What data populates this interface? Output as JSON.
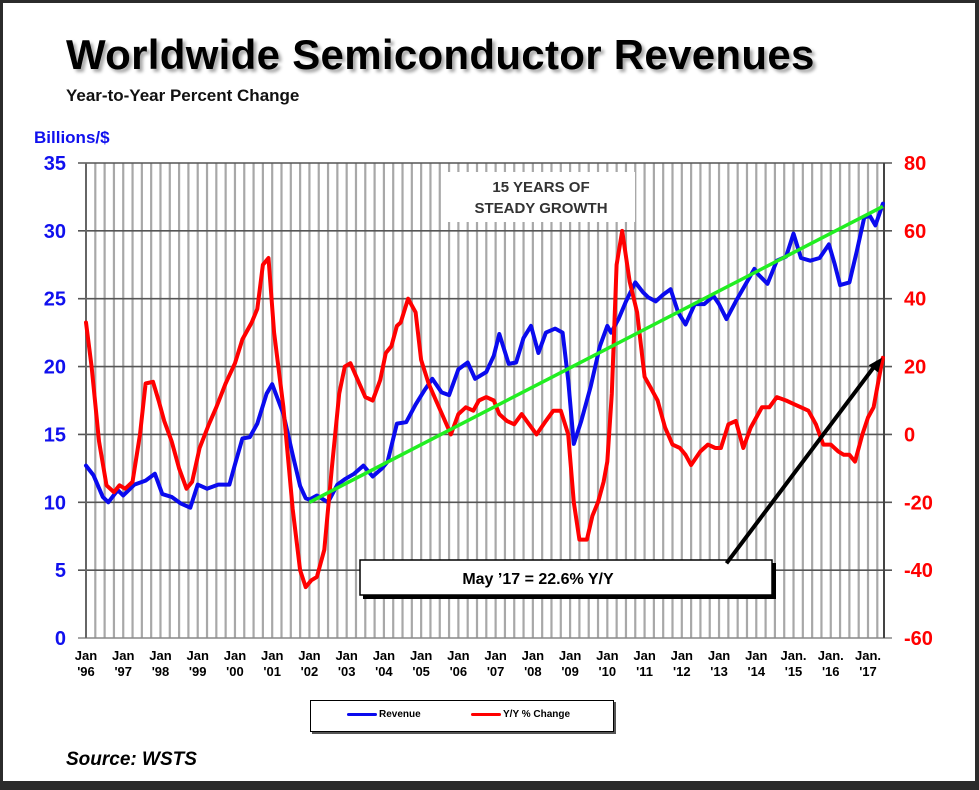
{
  "header": {
    "title": "Worldwide Semiconductor Revenues",
    "subtitle": "Year-to-Year Percent Change",
    "left_axis_label": "Billions/$"
  },
  "footer": {
    "source": "Source: WSTS"
  },
  "colors": {
    "revenue": "#0a0aee",
    "yoy": "#ff0000",
    "trend": "#22ee22",
    "left_axis_text": "#1010ee",
    "right_axis_text": "#ff0000",
    "grid_major": "#555555",
    "grid_minor": "#a8a8a8"
  },
  "chart_data": {
    "type": "line",
    "title": "Worldwide Semiconductor Revenues",
    "subtitle": "Year-to-Year Percent Change",
    "xlabel": "",
    "ylabel": "Billions/$",
    "ylabel_right": "Y/Y % Change",
    "ylim": [
      0,
      35
    ],
    "ylim_right": [
      -60,
      80
    ],
    "xlim": [
      1996,
      2017.4
    ],
    "y_ticks": [
      "0",
      "5",
      "10",
      "15",
      "20",
      "25",
      "30",
      "35"
    ],
    "y_ticks_right": [
      "-60",
      "-40",
      "-20",
      "0",
      "20",
      "40",
      "60",
      "80"
    ],
    "x_ticks": [
      {
        "l1": "Jan",
        "l2": "'96"
      },
      {
        "l1": "Jan",
        "l2": "'97"
      },
      {
        "l1": "Jan",
        "l2": "'98"
      },
      {
        "l1": "Jan",
        "l2": "'99"
      },
      {
        "l1": "Jan",
        "l2": "'00"
      },
      {
        "l1": "Jan",
        "l2": "'01"
      },
      {
        "l1": "Jan",
        "l2": "'02"
      },
      {
        "l1": "Jan",
        "l2": "'03"
      },
      {
        "l1": "Jan",
        "l2": "'04"
      },
      {
        "l1": "Jan",
        "l2": "'05"
      },
      {
        "l1": "Jan",
        "l2": "'06"
      },
      {
        "l1": "Jan",
        "l2": "'07"
      },
      {
        "l1": "Jan",
        "l2": "'08"
      },
      {
        "l1": "Jan",
        "l2": "'09"
      },
      {
        "l1": "Jan",
        "l2": "'10"
      },
      {
        "l1": "Jan",
        "l2": "'11"
      },
      {
        "l1": "Jan",
        "l2": "'12"
      },
      {
        "l1": "Jan",
        "l2": "'13"
      },
      {
        "l1": "Jan",
        "l2": "'14"
      },
      {
        "l1": "Jan.",
        "l2": "'15"
      },
      {
        "l1": "Jan.",
        "l2": "'16"
      },
      {
        "l1": "Jan.",
        "l2": "'17"
      }
    ],
    "grid": true,
    "legend_position": "bottom-center",
    "series": [
      {
        "name": "Revenue",
        "axis": "left",
        "x": [
          1996.0,
          1996.2,
          1996.45,
          1996.6,
          1996.85,
          1997.0,
          1997.3,
          1997.6,
          1997.85,
          1998.05,
          1998.3,
          1998.55,
          1998.8,
          1999.0,
          1999.25,
          1999.55,
          1999.85,
          2000.0,
          2000.2,
          2000.4,
          2000.6,
          2000.85,
          2001.0,
          2001.3,
          2001.55,
          2001.75,
          2001.9,
          2002.0,
          2002.2,
          2002.5,
          2002.75,
          2002.95,
          2003.2,
          2003.45,
          2003.7,
          2003.95,
          2004.1,
          2004.35,
          2004.6,
          2004.85,
          2005.1,
          2005.3,
          2005.55,
          2005.75,
          2006.0,
          2006.25,
          2006.45,
          2006.75,
          2006.95,
          2007.1,
          2007.35,
          2007.55,
          2007.75,
          2007.95,
          2008.15,
          2008.35,
          2008.6,
          2008.8,
          2008.95,
          2009.1,
          2009.3,
          2009.55,
          2009.8,
          2010.0,
          2010.1,
          2010.3,
          2010.5,
          2010.75,
          2010.95,
          2011.1,
          2011.3,
          2011.5,
          2011.7,
          2011.9,
          2012.1,
          2012.35,
          2012.6,
          2012.85,
          2013.0,
          2013.2,
          2013.45,
          2013.7,
          2013.95,
          2014.05,
          2014.3,
          2014.55,
          2014.8,
          2015.0,
          2015.2,
          2015.45,
          2015.7,
          2015.95,
          2016.1,
          2016.25,
          2016.5,
          2016.7,
          2016.9,
          2017.05,
          2017.2,
          2017.4
        ],
        "values": [
          12.7,
          12.0,
          10.4,
          10.0,
          10.9,
          10.5,
          11.3,
          11.6,
          12.1,
          10.6,
          10.4,
          9.9,
          9.6,
          11.3,
          11.0,
          11.3,
          11.3,
          12.8,
          14.7,
          14.8,
          15.8,
          18.0,
          18.7,
          16.5,
          13.5,
          11.2,
          10.3,
          10.2,
          10.5,
          10.0,
          11.3,
          11.7,
          12.1,
          12.7,
          11.9,
          12.5,
          13.0,
          15.8,
          15.9,
          17.2,
          18.3,
          19.1,
          18.1,
          17.9,
          19.8,
          20.3,
          19.1,
          19.6,
          20.8,
          22.4,
          20.2,
          20.3,
          22.1,
          23.0,
          21.0,
          22.5,
          22.8,
          22.5,
          19.0,
          14.3,
          16.0,
          18.5,
          21.5,
          23.0,
          22.5,
          23.5,
          24.8,
          26.2,
          25.5,
          25.1,
          24.8,
          25.3,
          25.7,
          24.0,
          23.1,
          24.6,
          24.6,
          25.2,
          24.6,
          23.5,
          24.8,
          26.0,
          27.2,
          26.8,
          26.1,
          27.8,
          28.1,
          29.8,
          28.0,
          27.8,
          28.0,
          29.0,
          27.6,
          26.0,
          26.2,
          28.5,
          31.0,
          31.1,
          30.4,
          32.0
        ]
      },
      {
        "name": "Y/Y % Change",
        "axis": "right",
        "x": [
          1996.0,
          1996.15,
          1996.35,
          1996.55,
          1996.75,
          1996.9,
          1997.05,
          1997.25,
          1997.45,
          1997.6,
          1997.8,
          1997.95,
          1998.1,
          1998.3,
          1998.5,
          1998.7,
          1998.85,
          1999.05,
          1999.3,
          1999.5,
          1999.75,
          2000.0,
          2000.2,
          2000.45,
          2000.6,
          2000.75,
          2000.9,
          2001.05,
          2001.3,
          2001.55,
          2001.75,
          2001.9,
          2002.05,
          2002.2,
          2002.4,
          2002.6,
          2002.8,
          2002.95,
          2003.1,
          2003.3,
          2003.5,
          2003.7,
          2003.9,
          2004.05,
          2004.2,
          2004.35,
          2004.45,
          2004.65,
          2004.85,
          2005.0,
          2005.2,
          2005.4,
          2005.6,
          2005.8,
          2006.0,
          2006.2,
          2006.4,
          2006.55,
          2006.75,
          2006.95,
          2007.1,
          2007.3,
          2007.5,
          2007.7,
          2007.9,
          2008.1,
          2008.35,
          2008.55,
          2008.75,
          2008.95,
          2009.1,
          2009.25,
          2009.45,
          2009.6,
          2009.75,
          2009.9,
          2010.0,
          2010.12,
          2010.25,
          2010.4,
          2010.6,
          2010.8,
          2011.0,
          2011.15,
          2011.35,
          2011.55,
          2011.75,
          2011.95,
          2012.1,
          2012.25,
          2012.5,
          2012.7,
          2012.9,
          2013.05,
          2013.25,
          2013.45,
          2013.65,
          2013.85,
          2014.0,
          2014.15,
          2014.35,
          2014.55,
          2014.8,
          2015.0,
          2015.2,
          2015.4,
          2015.6,
          2015.8,
          2016.0,
          2016.2,
          2016.35,
          2016.5,
          2016.65,
          2016.85,
          2017.0,
          2017.15,
          2017.3,
          2017.4
        ],
        "values": [
          33.0,
          20.0,
          -2.0,
          -15.0,
          -17.0,
          -15.0,
          -16.0,
          -14.0,
          0.0,
          15.0,
          15.5,
          10.0,
          4.0,
          -2.0,
          -10.0,
          -16.0,
          -14.0,
          -4.0,
          3.0,
          8.0,
          15.0,
          21.0,
          28.0,
          33.0,
          37.0,
          50.0,
          52.0,
          30.0,
          8.0,
          -22.0,
          -40.0,
          -45.0,
          -43.0,
          -42.0,
          -34.0,
          -10.0,
          12.0,
          20.0,
          21.0,
          16.0,
          11.0,
          10.0,
          16.0,
          24.0,
          26.0,
          32.0,
          33.0,
          40.0,
          36.0,
          22.0,
          15.0,
          10.0,
          5.0,
          0.0,
          6.0,
          8.0,
          7.0,
          10.0,
          11.0,
          10.0,
          6.0,
          4.0,
          3.0,
          6.0,
          3.0,
          0.0,
          4.0,
          7.0,
          7.0,
          0.0,
          -20.0,
          -31.0,
          -31.0,
          -24.0,
          -20.0,
          -14.0,
          -8.0,
          12.0,
          50.0,
          60.0,
          45.0,
          36.0,
          17.0,
          14.0,
          10.0,
          2.0,
          -3.0,
          -4.0,
          -6.0,
          -9.0,
          -5.0,
          -3.0,
          -4.0,
          -4.0,
          3.0,
          4.0,
          -4.0,
          2.0,
          5.0,
          8.0,
          8.0,
          11.0,
          10.0,
          9.0,
          8.0,
          7.0,
          3.0,
          -3.0,
          -3.0,
          -5.0,
          -6.0,
          -6.0,
          -8.0,
          0.0,
          5.0,
          8.0,
          17.0,
          22.6
        ]
      }
    ],
    "annotations": [
      {
        "text_lines": [
          "15 YEARS OF",
          "STEADY GROWTH"
        ],
        "type": "label"
      },
      {
        "text": "May ’17 = 22.6% Y/Y",
        "type": "callout-box"
      },
      {
        "type": "trend-line",
        "label": "Revenue trend",
        "axis": "left",
        "from": {
          "x": 2002.0,
          "y": 10.0
        },
        "to": {
          "x": 2017.4,
          "y": 31.8
        }
      },
      {
        "type": "arrow",
        "axis": "right",
        "from": {
          "x": 2013.2,
          "y": -38
        },
        "to": {
          "x": 2017.4,
          "y": 22.6
        }
      }
    ]
  }
}
